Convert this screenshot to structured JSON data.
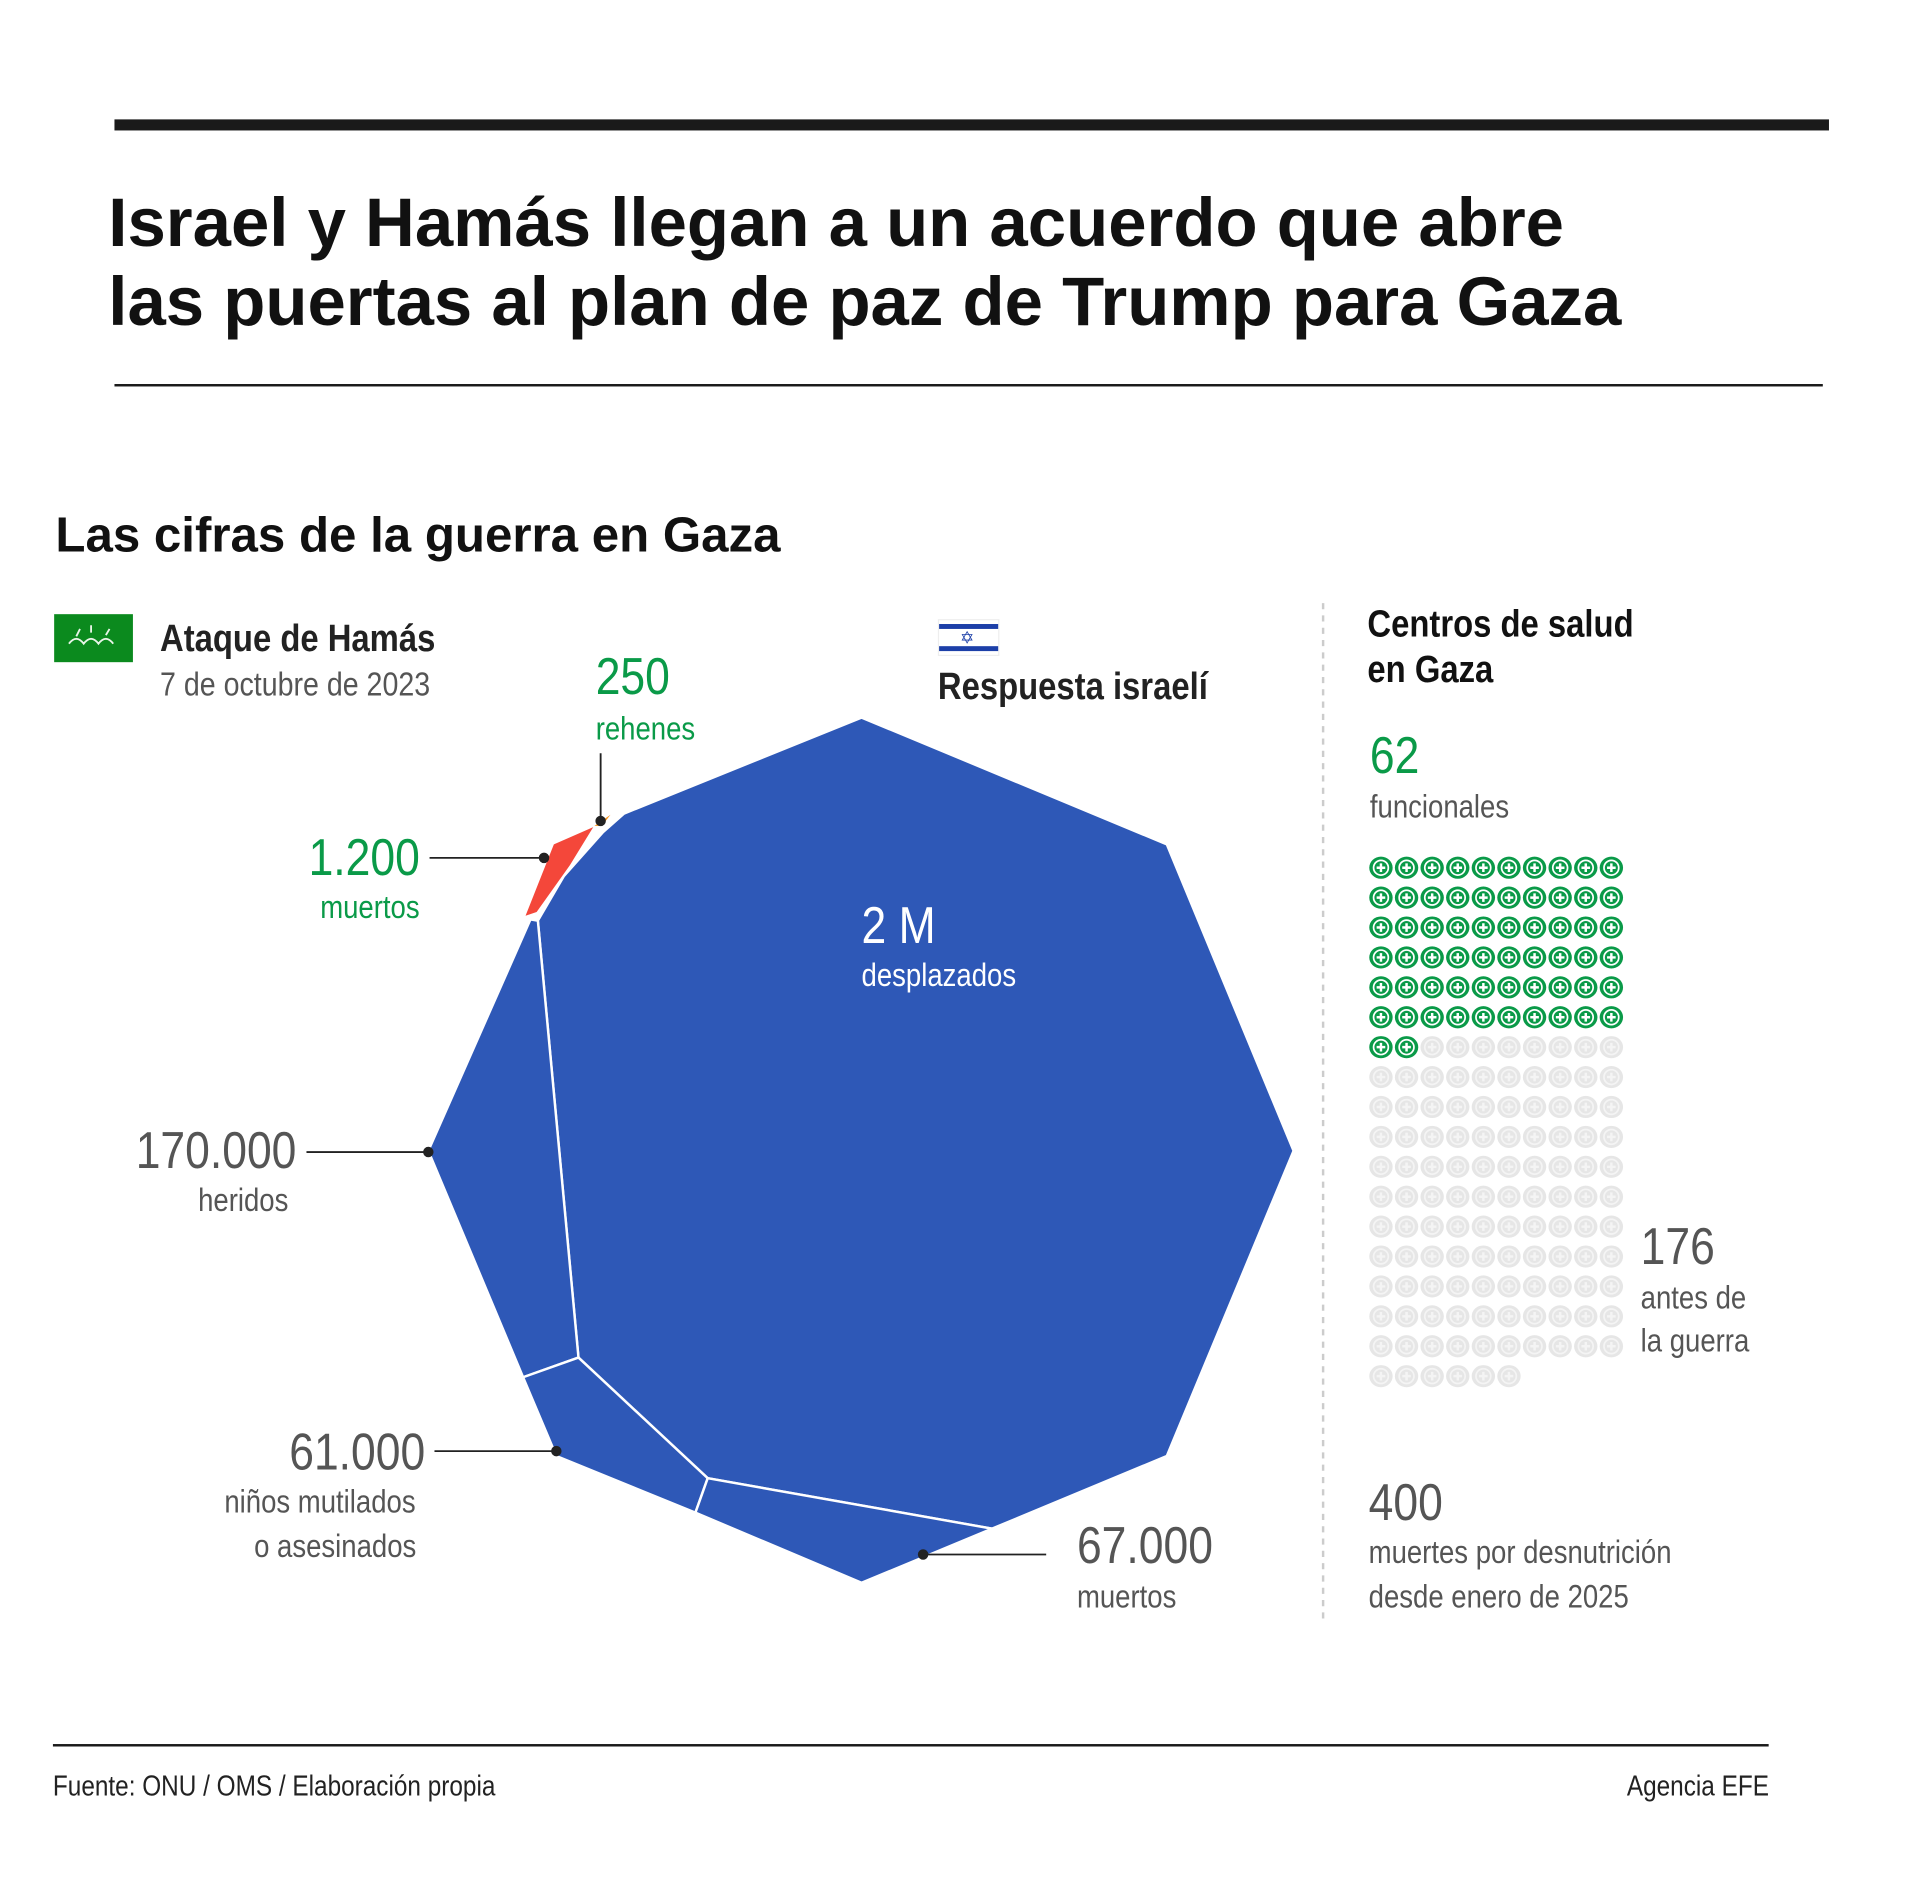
{
  "header": {
    "title_line1": "Israel y Hamás llegan a un acuerdo que abre",
    "title_line2": "las puertas al plan de paz de Trump para Gaza"
  },
  "section_title": "Las cifras de la guerra en Gaza",
  "hamas": {
    "title": "Ataque de Hamás",
    "date": "7 de octubre de 2023",
    "flag_icon": "hamas-flag-icon",
    "hostages": {
      "value": "250",
      "label": "rehenes"
    },
    "dead": {
      "value": "1.200",
      "label": "muertos"
    }
  },
  "israel": {
    "title": "Respuesta israelí",
    "flag_icon": "israel-flag-icon",
    "displaced": {
      "value": "2 M",
      "label": "desplazados"
    },
    "wounded": {
      "value": "170.000",
      "label": "heridos"
    },
    "children": {
      "value": "61.000",
      "label_line1": "niños mutilados",
      "label_line2": "o asesinados"
    },
    "dead": {
      "value": "67.000",
      "label": "muertos"
    }
  },
  "health": {
    "title_line1": "Centros de salud",
    "title_line2": "en Gaza",
    "functional": {
      "value": "62",
      "label": "funcionales"
    },
    "before": {
      "value": "176",
      "label_line1": "antes de",
      "label_line2": "la guerra"
    },
    "malnutrition": {
      "value": "400",
      "label_line1": "muertes por desnutrición",
      "label_line2": "desde enero de 2025"
    }
  },
  "chart_data": {
    "type": "waffle",
    "total": 176,
    "functional": 62,
    "columns": 10,
    "colors": {
      "functional": "#0a9a48",
      "non_functional": "#e6e6e6"
    }
  },
  "colors": {
    "israel_blue": "#2e58b7",
    "hamas_red": "#f4473a",
    "hostage_orange": "#f7941d",
    "green": "#0a9a48"
  },
  "footer": {
    "source": "Fuente: ONU / OMS / Elaboración propia",
    "credit": "Agencia EFE"
  }
}
